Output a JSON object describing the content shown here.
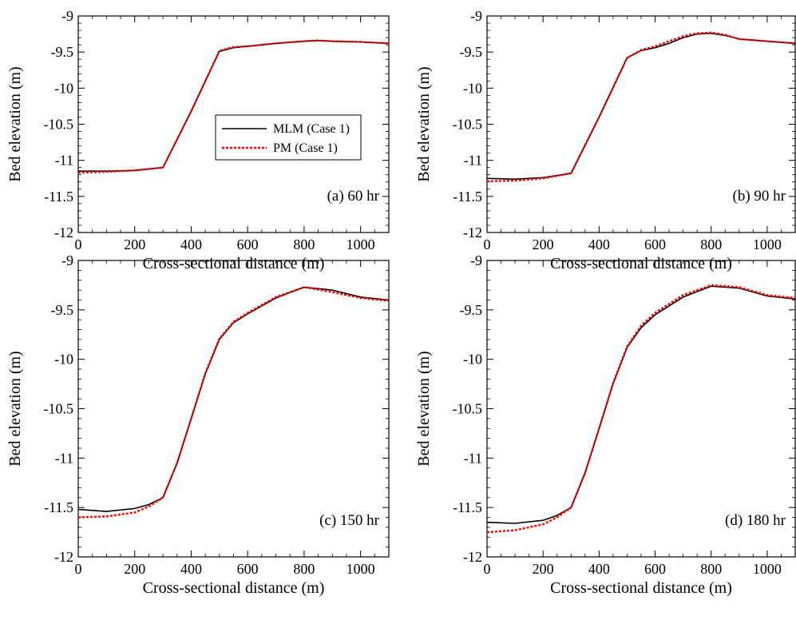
{
  "chart_data": [
    {
      "type": "line",
      "panel_label": "(a) 60 hr",
      "xlabel": "Cross-sectional distance (m)",
      "ylabel": "Bed elevation (m)",
      "xlim": [
        0,
        1100
      ],
      "ylim": [
        -12,
        -9
      ],
      "xticks": [
        "0",
        "200",
        "400",
        "600",
        "800",
        "1000"
      ],
      "yticks": [
        "-9",
        "-9.5",
        "-10",
        "-10.5",
        "-11",
        "-11.5",
        "-12"
      ],
      "grid": false,
      "legend": {
        "placement": "center-right",
        "entries": [
          "MLM (Case 1)",
          "PM (Case 1)"
        ]
      },
      "series": [
        {
          "name": "MLM (Case 1)",
          "color": "#000000",
          "style": "solid",
          "x": [
            0,
            100,
            200,
            300,
            400,
            500,
            550,
            600,
            700,
            800,
            850,
            900,
            1000,
            1100
          ],
          "y": [
            -11.15,
            -11.15,
            -11.14,
            -11.1,
            -10.32,
            -9.49,
            -9.44,
            -9.42,
            -9.38,
            -9.35,
            -9.34,
            -9.35,
            -9.36,
            -9.38
          ]
        },
        {
          "name": "PM (Case 1)",
          "color": "#ff0000",
          "style": "dotted",
          "x": [
            0,
            100,
            200,
            300,
            400,
            500,
            550,
            600,
            700,
            800,
            850,
            900,
            1000,
            1100
          ],
          "y": [
            -11.17,
            -11.16,
            -11.14,
            -11.1,
            -10.32,
            -9.48,
            -9.43,
            -9.42,
            -9.38,
            -9.35,
            -9.34,
            -9.35,
            -9.36,
            -9.38
          ]
        }
      ]
    },
    {
      "type": "line",
      "panel_label": "(b) 90 hr",
      "xlabel": "Cross-sectional distance (m)",
      "ylabel": "Bed elevation (m)",
      "xlim": [
        0,
        1100
      ],
      "ylim": [
        -12,
        -9
      ],
      "xticks": [
        "0",
        "200",
        "400",
        "600",
        "800",
        "1000"
      ],
      "yticks": [
        "-9",
        "-9.5",
        "-10",
        "-10.5",
        "-11",
        "-11.5",
        "-12"
      ],
      "grid": false,
      "series": [
        {
          "name": "MLM (Case 1)",
          "color": "#000000",
          "style": "solid",
          "x": [
            0,
            100,
            200,
            300,
            400,
            500,
            550,
            600,
            650,
            700,
            750,
            800,
            850,
            900,
            1000,
            1100
          ],
          "y": [
            -11.25,
            -11.26,
            -11.24,
            -11.18,
            -10.4,
            -9.58,
            -9.48,
            -9.44,
            -9.38,
            -9.3,
            -9.25,
            -9.24,
            -9.27,
            -9.32,
            -9.35,
            -9.38
          ]
        },
        {
          "name": "PM (Case 1)",
          "color": "#ff0000",
          "style": "dotted",
          "x": [
            0,
            100,
            200,
            300,
            400,
            500,
            550,
            600,
            650,
            700,
            750,
            800,
            850,
            900,
            1000,
            1100
          ],
          "y": [
            -11.29,
            -11.28,
            -11.25,
            -11.18,
            -10.4,
            -9.58,
            -9.47,
            -9.42,
            -9.35,
            -9.28,
            -9.24,
            -9.23,
            -9.26,
            -9.32,
            -9.35,
            -9.38
          ]
        }
      ]
    },
    {
      "type": "line",
      "panel_label": "(c) 150 hr",
      "xlabel": "Cross-sectional distance (m)",
      "ylabel": "Bed elevation (m)",
      "xlim": [
        0,
        1100
      ],
      "ylim": [
        -12,
        -9
      ],
      "xticks": [
        "0",
        "200",
        "400",
        "600",
        "800",
        "1000"
      ],
      "yticks": [
        "-9",
        "-9.5",
        "-10",
        "-10.5",
        "-11",
        "-11.5",
        "-12"
      ],
      "grid": false,
      "series": [
        {
          "name": "MLM (Case 1)",
          "color": "#000000",
          "style": "solid",
          "x": [
            0,
            100,
            200,
            250,
            300,
            350,
            400,
            450,
            500,
            550,
            600,
            700,
            800,
            900,
            1000,
            1100
          ],
          "y": [
            -11.52,
            -11.54,
            -11.51,
            -11.47,
            -11.4,
            -11.05,
            -10.6,
            -10.15,
            -9.8,
            -9.63,
            -9.54,
            -9.38,
            -9.27,
            -9.3,
            -9.37,
            -9.4
          ]
        },
        {
          "name": "PM (Case 1)",
          "color": "#ff0000",
          "style": "dotted",
          "x": [
            0,
            100,
            200,
            250,
            300,
            350,
            400,
            450,
            500,
            550,
            600,
            700,
            800,
            900,
            1000,
            1100
          ],
          "y": [
            -11.6,
            -11.59,
            -11.55,
            -11.49,
            -11.4,
            -11.05,
            -10.6,
            -10.14,
            -9.79,
            -9.62,
            -9.53,
            -9.37,
            -9.27,
            -9.32,
            -9.38,
            -9.41
          ]
        }
      ]
    },
    {
      "type": "line",
      "panel_label": "(d) 180 hr",
      "xlabel": "Cross-sectional distance (m)",
      "ylabel": "Bed elevation (m)",
      "xlim": [
        0,
        1100
      ],
      "ylim": [
        -12,
        -9
      ],
      "xticks": [
        "0",
        "200",
        "400",
        "600",
        "800",
        "1000"
      ],
      "yticks": [
        "-9",
        "-9.5",
        "-10",
        "-10.5",
        "-11",
        "-11.5",
        "-12"
      ],
      "grid": false,
      "series": [
        {
          "name": "MLM (Case 1)",
          "color": "#000000",
          "style": "solid",
          "x": [
            0,
            100,
            200,
            250,
            300,
            350,
            400,
            450,
            500,
            550,
            600,
            700,
            800,
            900,
            1000,
            1100
          ],
          "y": [
            -11.65,
            -11.66,
            -11.63,
            -11.58,
            -11.5,
            -11.15,
            -10.7,
            -10.25,
            -9.88,
            -9.68,
            -9.55,
            -9.37,
            -9.26,
            -9.28,
            -9.36,
            -9.39
          ]
        },
        {
          "name": "PM (Case 1)",
          "color": "#ff0000",
          "style": "dotted",
          "x": [
            0,
            100,
            200,
            250,
            300,
            350,
            400,
            450,
            500,
            550,
            600,
            700,
            800,
            900,
            1000,
            1100
          ],
          "y": [
            -11.75,
            -11.73,
            -11.67,
            -11.6,
            -11.5,
            -11.15,
            -10.7,
            -10.24,
            -9.87,
            -9.66,
            -9.53,
            -9.35,
            -9.25,
            -9.27,
            -9.35,
            -9.38
          ]
        }
      ]
    }
  ]
}
